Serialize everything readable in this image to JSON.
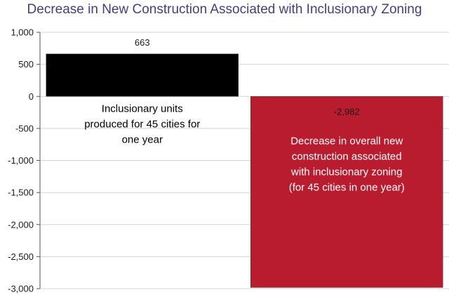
{
  "chart_data": {
    "type": "bar",
    "title": "Decrease in New Construction Associated with Inclusionary Zoning",
    "xlabel": "",
    "ylabel": "",
    "ylim": [
      -3000,
      1000
    ],
    "y_ticks": [
      1000,
      500,
      0,
      -500,
      -1000,
      -1500,
      -2000,
      -2500,
      -3000
    ],
    "y_tick_labels": [
      "1,000",
      "500",
      "0",
      "-500",
      "-1,000",
      "-1,500",
      "-2,000",
      "-2,500",
      "-3,000"
    ],
    "grid": true,
    "bars": [
      {
        "value": 663,
        "value_label": "663",
        "color": "#000000",
        "annotation": [
          "Inclusionary units",
          "produced for 45 cities for",
          "one year"
        ],
        "annotation_color": "#000000"
      },
      {
        "value": -2982,
        "value_label": "-2,982",
        "color": "#b81c2e",
        "annotation": [
          "Decrease in overall new",
          "construction associated",
          "with inclusionary zoning",
          "(for 45 cities in one year)"
        ],
        "annotation_color": "#ffffff"
      }
    ]
  }
}
